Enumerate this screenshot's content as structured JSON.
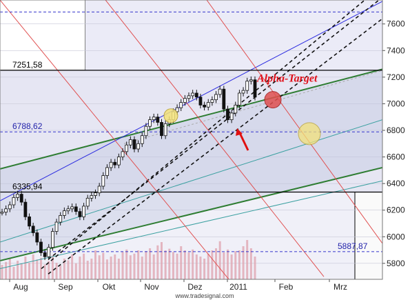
{
  "chart_data": {
    "type": "candlestick",
    "source_credit": "www.tradesignal.com",
    "x_ticks": [
      "Aug",
      "Sep",
      "Okt",
      "Nov",
      "Dez",
      "2011",
      "Feb",
      "Mrz"
    ],
    "y_ticks": [
      5800,
      6000,
      6200,
      6400,
      6600,
      6800,
      7000,
      7200,
      7400,
      7600
    ],
    "ylim": [
      5680,
      7780
    ],
    "levels": [
      {
        "label": "7251,58",
        "value": 7251.58,
        "color": "#000000",
        "style": "solid"
      },
      {
        "label": "6788,62",
        "value": 6788.62,
        "color": "#3333cc",
        "style": "dashed"
      },
      {
        "label": "6335,94",
        "value": 6335.94,
        "color": "#000000",
        "style": "solid"
      },
      {
        "label": "5887,87",
        "value": 5887.87,
        "color": "#3333cc",
        "style": "dashed"
      }
    ],
    "top_dashed_level": 7690,
    "annotation": {
      "text": "Alpha-Target",
      "color": "#e0101a"
    },
    "series": [
      {
        "name": "price",
        "values": [
          6185,
          6210,
          6240,
          6295,
          6320,
          6260,
          6150,
          6080,
          6030,
          5960,
          5880,
          5850,
          5920,
          6040,
          6110,
          6160,
          6195,
          6210,
          6225,
          6190,
          6150,
          6230,
          6290,
          6310,
          6330,
          6380,
          6460,
          6520,
          6560,
          6540,
          6600,
          6640,
          6690,
          6730,
          6660,
          6700,
          6760,
          6830,
          6880,
          6900,
          6860,
          6760,
          6850,
          6880,
          6940,
          6970,
          7010,
          7040,
          7060,
          7080,
          7050,
          6990,
          6975,
          7010,
          7030,
          7070,
          7110,
          6960,
          6880,
          6930,
          6990,
          7080,
          7100,
          7170,
          7180,
          7050
        ]
      }
    ],
    "volume": [
      0.35,
      0.42,
      0.5,
      0.3,
      0.45,
      0.38,
      0.55,
      0.4,
      0.6,
      0.48,
      0.52,
      0.36,
      0.44,
      0.58,
      0.4,
      0.33,
      0.5,
      0.46,
      0.6,
      0.39,
      0.55,
      0.62,
      0.45,
      0.5,
      0.7,
      0.58,
      0.64,
      0.48,
      0.55,
      0.6,
      0.5,
      0.66,
      0.72,
      0.58,
      0.62,
      0.7,
      0.55,
      0.68,
      0.75,
      0.6,
      0.82,
      0.9,
      0.7,
      0.74,
      0.66,
      0.62,
      0.8,
      0.7,
      0.65,
      0.72,
      0.6,
      0.55,
      0.5,
      0.62,
      0.7,
      0.75,
      0.92,
      0.65,
      0.72,
      0.6,
      0.68,
      0.7,
      0.8,
      0.95,
      0.75,
      0.55
    ],
    "grid": true,
    "legend": "none"
  }
}
